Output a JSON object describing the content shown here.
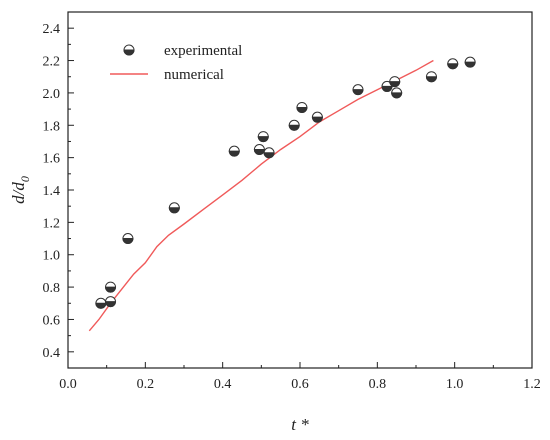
{
  "chart_data": {
    "type": "scatter",
    "xlabel": "t *",
    "ylabel_main": "d/d",
    "ylabel_sub": "0",
    "xlim": [
      0.0,
      1.2
    ],
    "ylim": [
      0.3,
      2.5
    ],
    "x_ticks": [
      "0.0",
      "0.2",
      "0.4",
      "0.6",
      "0.8",
      "1.0",
      "1.2"
    ],
    "y_ticks": [
      "0.4",
      "0.6",
      "0.8",
      "1.0",
      "1.2",
      "1.4",
      "1.6",
      "1.8",
      "2.0",
      "2.2",
      "2.4"
    ],
    "grid": false,
    "legend_position": "top-left",
    "series": [
      {
        "name": "experimental",
        "kind": "markers",
        "marker": "half-filled-circle",
        "color": "#444444",
        "points": [
          [
            0.085,
            0.7
          ],
          [
            0.11,
            0.71
          ],
          [
            0.11,
            0.8
          ],
          [
            0.155,
            1.1
          ],
          [
            0.275,
            1.29
          ],
          [
            0.43,
            1.64
          ],
          [
            0.495,
            1.65
          ],
          [
            0.505,
            1.73
          ],
          [
            0.52,
            1.63
          ],
          [
            0.585,
            1.8
          ],
          [
            0.605,
            1.91
          ],
          [
            0.645,
            1.85
          ],
          [
            0.75,
            2.02
          ],
          [
            0.825,
            2.04
          ],
          [
            0.845,
            2.07
          ],
          [
            0.85,
            2.0
          ],
          [
            0.94,
            2.1
          ],
          [
            0.995,
            2.18
          ],
          [
            1.04,
            2.19
          ]
        ]
      },
      {
        "name": "numerical",
        "kind": "line",
        "color": "#f05a5a",
        "points": [
          [
            0.055,
            0.53
          ],
          [
            0.08,
            0.6
          ],
          [
            0.11,
            0.7
          ],
          [
            0.14,
            0.79
          ],
          [
            0.17,
            0.88
          ],
          [
            0.2,
            0.95
          ],
          [
            0.23,
            1.05
          ],
          [
            0.26,
            1.12
          ],
          [
            0.3,
            1.19
          ],
          [
            0.35,
            1.28
          ],
          [
            0.4,
            1.37
          ],
          [
            0.45,
            1.46
          ],
          [
            0.5,
            1.56
          ],
          [
            0.55,
            1.65
          ],
          [
            0.6,
            1.73
          ],
          [
            0.65,
            1.82
          ],
          [
            0.7,
            1.89
          ],
          [
            0.75,
            1.96
          ],
          [
            0.8,
            2.02
          ],
          [
            0.85,
            2.08
          ],
          [
            0.9,
            2.14
          ],
          [
            0.945,
            2.2
          ]
        ]
      }
    ]
  }
}
